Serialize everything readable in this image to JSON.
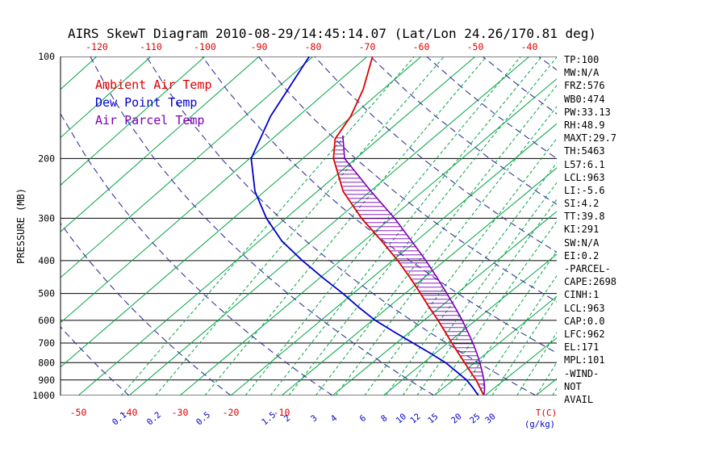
{
  "title": "AIRS SkewT Diagram 2010-08-29/14:45:14.07 (Lat/Lon 24.26/170.81 deg)",
  "colors": {
    "temp": "#dd0000",
    "dewpoint": "#0000cc",
    "parcel": "#7700b4",
    "isotherm": "#00a443",
    "adiabat": "#333399",
    "axis": "#000000"
  },
  "legend": [
    {
      "label": "Ambient Air Temp",
      "color_key": "temp"
    },
    {
      "label": "Dew Point Temp",
      "color_key": "dewpoint"
    },
    {
      "label": "Air Parcel Temp",
      "color_key": "parcel"
    }
  ],
  "stats_panel": [
    "TP:100",
    "MW:N/A",
    "FRZ:576",
    "WB0:474",
    "PW:33.13",
    "RH:48.9",
    "MAXT:29.7",
    "TH:5463",
    "L57:6.1",
    "LCL:963",
    "LI:-5.6",
    "SI:4.2",
    "TT:39.8",
    "KI:291",
    "SW:N/A",
    "EI:0.2",
    "-PARCEL-",
    "CAPE:2698",
    "CINH:1",
    "LCL:963",
    "CAP:0.0",
    "LFC:962",
    "EL:171",
    "MPL:101",
    "-WIND-",
    "NOT",
    "AVAIL"
  ],
  "chart_data": {
    "type": "skewt-log-p",
    "ylabel": "PRESSURE (MB)",
    "xlabel_temp": "T(C)",
    "xlabel_mixing": "(g/kg)",
    "pressure_ticks": [
      100,
      200,
      300,
      400,
      500,
      600,
      700,
      800,
      900,
      1000
    ],
    "top_temp_ticks": [
      -120,
      -110,
      -100,
      -90,
      -80,
      -70,
      -60,
      -50,
      -40
    ],
    "bottom_temp_ticks": [
      -50,
      -40,
      -30,
      -20,
      -10
    ],
    "mixing_ratio_labels": [
      "0.1",
      "0.2",
      "0.5",
      "1.5",
      "2",
      "3",
      "4",
      "6",
      "8",
      "10",
      "12",
      "15",
      "20",
      "25",
      "30"
    ],
    "mixing_ratio_lines": [
      0.1,
      0.2,
      0.5,
      1,
      1.5,
      2,
      3,
      4,
      6,
      8,
      10,
      12,
      15,
      20,
      25,
      30,
      40,
      50,
      60
    ],
    "isotherms": {
      "start": -130,
      "end": 60,
      "step": 10
    },
    "adiabat_thetas": [
      -60,
      -40,
      -20,
      0,
      20,
      40,
      60,
      80,
      100,
      120,
      140,
      160,
      180,
      200
    ],
    "series": {
      "ambient": {
        "name": "Ambient Air Temp",
        "points": [
          [
            1000,
            29.8
          ],
          [
            950,
            27.2
          ],
          [
            900,
            24.5
          ],
          [
            850,
            21.3
          ],
          [
            800,
            18.0
          ],
          [
            750,
            14.5
          ],
          [
            700,
            10.8
          ],
          [
            650,
            6.9
          ],
          [
            600,
            2.7
          ],
          [
            550,
            -2.0
          ],
          [
            500,
            -7.0
          ],
          [
            450,
            -12.6
          ],
          [
            400,
            -19.0
          ],
          [
            350,
            -26.6
          ],
          [
            300,
            -35.6
          ],
          [
            250,
            -45.1
          ],
          [
            200,
            -54.2
          ],
          [
            175,
            -58.2
          ],
          [
            150,
            -60.2
          ],
          [
            125,
            -63.7
          ],
          [
            100,
            -69.0
          ]
        ]
      },
      "dewpoint": {
        "name": "Dew Point Temp",
        "points": [
          [
            1000,
            28.7
          ],
          [
            950,
            25.8
          ],
          [
            900,
            22.6
          ],
          [
            850,
            18.6
          ],
          [
            800,
            14.3
          ],
          [
            750,
            9.0
          ],
          [
            700,
            3.2
          ],
          [
            650,
            -3.0
          ],
          [
            600,
            -9.5
          ],
          [
            550,
            -15.6
          ],
          [
            500,
            -22.0
          ],
          [
            450,
            -29.4
          ],
          [
            400,
            -37.3
          ],
          [
            350,
            -45.7
          ],
          [
            300,
            -53.7
          ],
          [
            250,
            -61.8
          ],
          [
            200,
            -69.7
          ],
          [
            150,
            -75.2
          ],
          [
            100,
            -80.7
          ]
        ]
      },
      "parcel": {
        "name": "Air Parcel Temp",
        "points": [
          [
            1000,
            29.8
          ],
          [
            950,
            28.1
          ],
          [
            900,
            26.0
          ],
          [
            850,
            23.6
          ],
          [
            800,
            21.0
          ],
          [
            750,
            18.1
          ],
          [
            700,
            14.9
          ],
          [
            650,
            11.3
          ],
          [
            600,
            7.4
          ],
          [
            550,
            3.0
          ],
          [
            500,
            -1.9
          ],
          [
            450,
            -7.4
          ],
          [
            400,
            -13.6
          ],
          [
            350,
            -20.9
          ],
          [
            300,
            -29.3
          ],
          [
            250,
            -39.8
          ],
          [
            200,
            -52.1
          ],
          [
            171,
            -57.5
          ]
        ]
      }
    },
    "cape_area": {
      "from_p": 963,
      "to_p": 171
    }
  }
}
